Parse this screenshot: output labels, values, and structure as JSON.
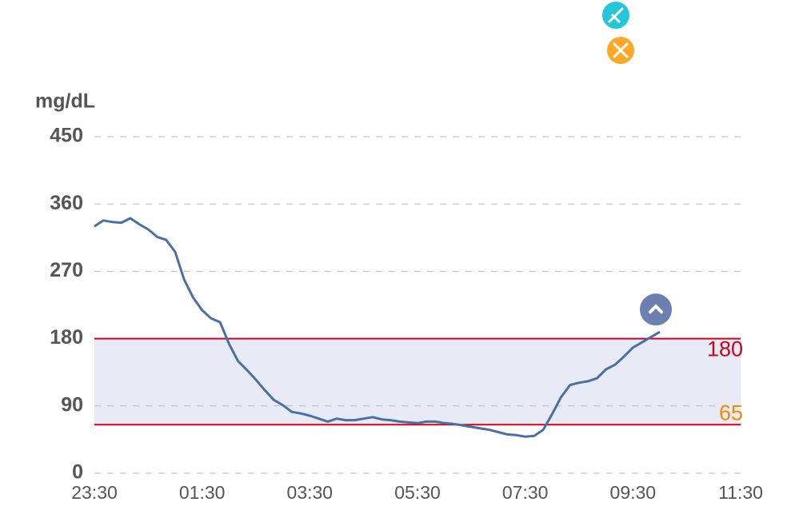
{
  "chart_data": {
    "type": "line",
    "y_label": "mg/dL",
    "x": [
      "23:30",
      "23:40",
      "23:50",
      "00:00",
      "00:10",
      "00:20",
      "00:30",
      "00:40",
      "00:50",
      "01:00",
      "01:10",
      "01:20",
      "01:30",
      "01:40",
      "01:50",
      "02:00",
      "02:10",
      "02:20",
      "02:30",
      "02:40",
      "02:50",
      "03:00",
      "03:10",
      "03:20",
      "03:30",
      "03:40",
      "03:50",
      "04:00",
      "04:10",
      "04:20",
      "04:30",
      "04:40",
      "04:50",
      "05:00",
      "05:10",
      "05:20",
      "05:30",
      "05:40",
      "05:50",
      "06:00",
      "06:10",
      "06:20",
      "06:30",
      "06:40",
      "06:50",
      "07:00",
      "07:10",
      "07:20",
      "07:30",
      "07:40",
      "07:50",
      "08:00",
      "08:10",
      "08:20",
      "08:30",
      "08:40",
      "08:50",
      "09:00",
      "09:10",
      "09:20",
      "09:30",
      "09:40",
      "09:50",
      "10:00"
    ],
    "series": [
      {
        "color": "#4a6fa5",
        "values": [
          330,
          338,
          336,
          335,
          341,
          333,
          326,
          316,
          312,
          296,
          259,
          235,
          218,
          207,
          202,
          173,
          150,
          138,
          125,
          111,
          98,
          91,
          82,
          80,
          77,
          73,
          69,
          73,
          71,
          71,
          73,
          75,
          72,
          71,
          69,
          68,
          67,
          69,
          69,
          67,
          66,
          64,
          62,
          60,
          58,
          55,
          52,
          51,
          49,
          50,
          58,
          79,
          102,
          118,
          121,
          123,
          127,
          139,
          145,
          156,
          168,
          175,
          182,
          189
        ]
      }
    ],
    "xlim": [
      "23:30",
      "11:30"
    ],
    "xticks": [
      "23:30",
      "01:30",
      "03:30",
      "05:30",
      "07:30",
      "09:30",
      "11:30"
    ],
    "ylim": [
      0,
      450
    ],
    "yticks": [
      0,
      90,
      180,
      270,
      360,
      450
    ],
    "grid": true,
    "target_range_color": "#e8eaf6",
    "thresholds": [
      {
        "value": 180,
        "color": "#d0021b"
      },
      {
        "value": 65,
        "color": "#f08c00"
      }
    ]
  }
}
